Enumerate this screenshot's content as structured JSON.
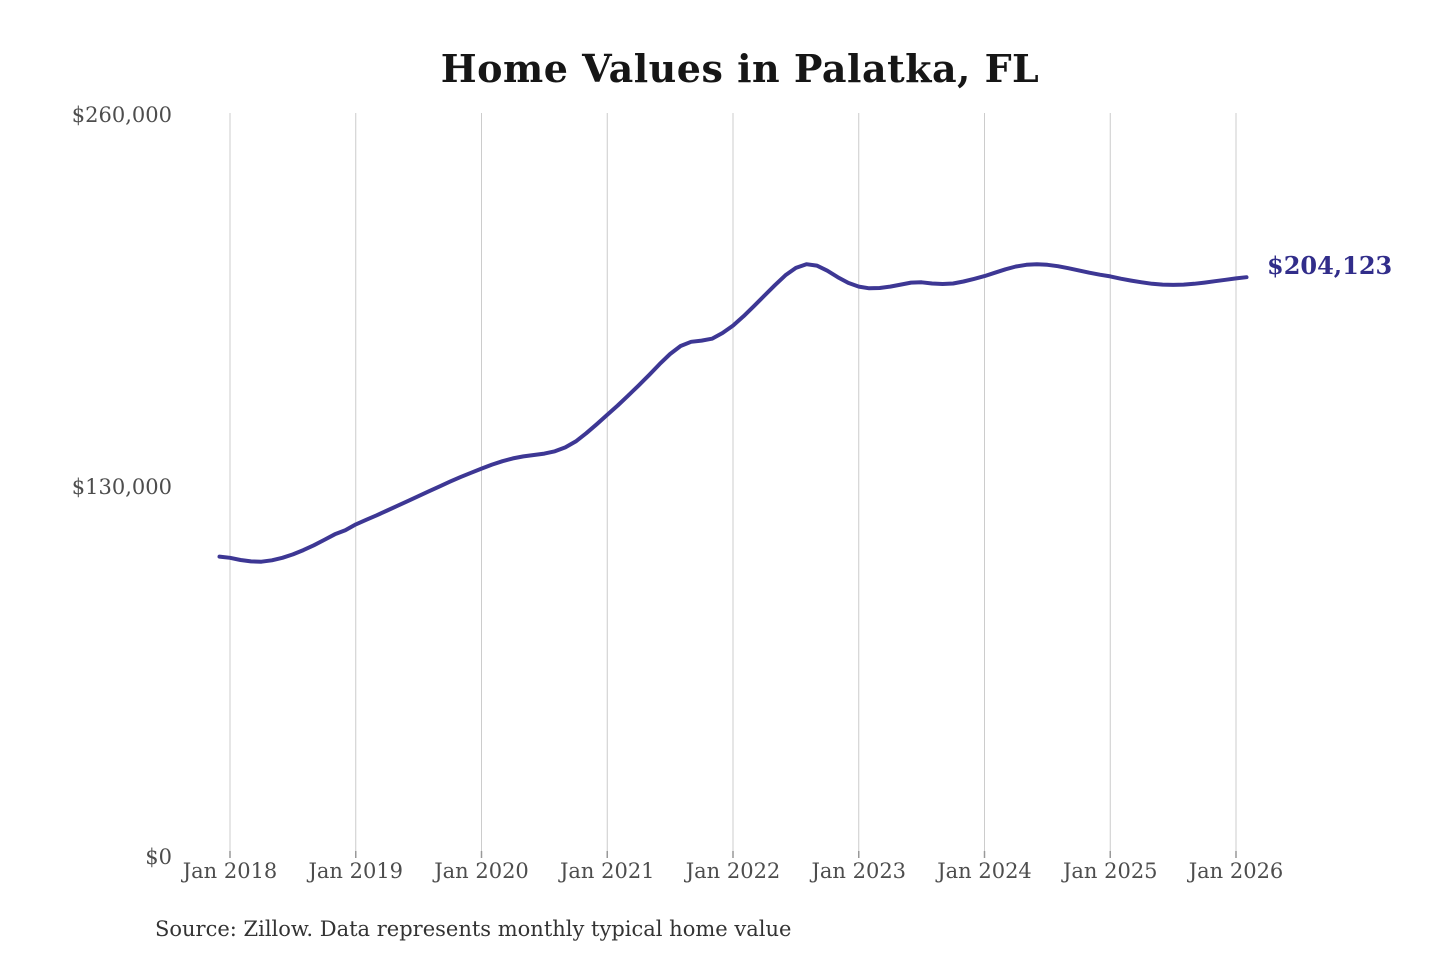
{
  "colors": {
    "line": "#3d3794",
    "end_label": "#312d8a",
    "grid": "#cccccc",
    "tick": "#999999",
    "axis_text": "#4d4d4d",
    "title_text": "#161616",
    "source_text": "#333333",
    "background": "#ffffff"
  },
  "chart_data": {
    "type": "line",
    "title": "Home Values in Palatka, FL",
    "xlabel": "",
    "ylabel": "",
    "y_range": [
      0,
      260000
    ],
    "grid": "vertical-only",
    "legend": "none",
    "y_tick_labels": [
      "$260,000",
      "$130,000",
      "$0"
    ],
    "x_tick_labels": [
      "Jan 2018",
      "Jan 2019",
      "Jan 2020",
      "Jan 2021",
      "Jan 2022",
      "Jan 2023",
      "Jan 2024",
      "Jan 2025",
      "Jan 2026"
    ],
    "end_label": "$204,123",
    "source_note": "Source: Zillow. Data represents monthly typical home value",
    "series": [
      {
        "name": "Monthly typical home value",
        "interval": "monthly",
        "start": "Dec 2017",
        "end": "Feb 2026",
        "latest_value": 204123,
        "values": [
          105400,
          105000,
          104200,
          103700,
          103600,
          104100,
          105000,
          106200,
          107700,
          109400,
          111300,
          113300,
          114700,
          116800,
          118400,
          120000,
          121700,
          123400,
          125100,
          126800,
          128500,
          130200,
          131900,
          133500,
          135000,
          136500,
          137900,
          139100,
          140100,
          140800,
          141300,
          141800,
          142600,
          144000,
          146100,
          149000,
          152200,
          155500,
          158800,
          162300,
          165900,
          169600,
          173400,
          177000,
          179800,
          181300,
          181700,
          182400,
          184400,
          187000,
          190300,
          193900,
          197600,
          201300,
          204800,
          207400,
          208700,
          208200,
          206400,
          204100,
          202100,
          200800,
          200200,
          200300,
          200800,
          201500,
          202200,
          202300,
          201900,
          201700,
          201900,
          202600,
          203500,
          204500,
          205700,
          206900,
          207900,
          208500,
          208700,
          208500,
          208000,
          207300,
          206500,
          205700,
          205000,
          204400,
          203600,
          202900,
          202300,
          201800,
          201500,
          201400,
          201500,
          201800,
          202200,
          202700,
          203200,
          203700,
          204123
        ]
      }
    ]
  }
}
